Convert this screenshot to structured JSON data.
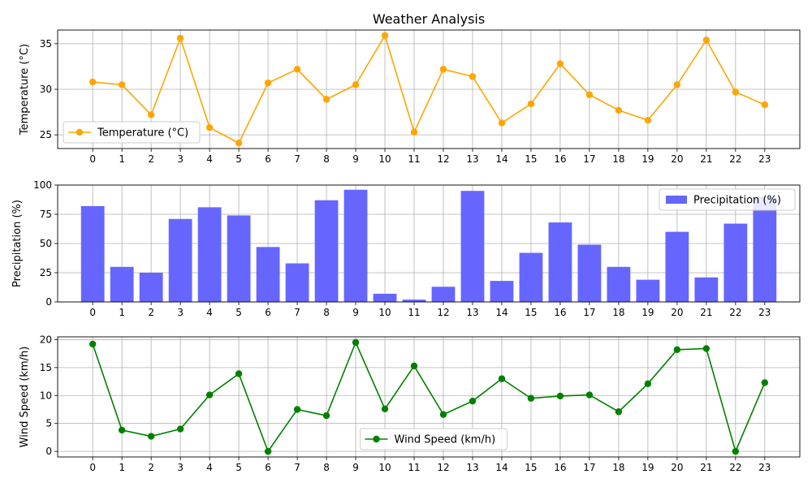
{
  "title": "Weather Analysis",
  "chart_data": [
    {
      "type": "line",
      "name": "temperature-panel",
      "title": "Weather Analysis",
      "x": [
        0,
        1,
        2,
        3,
        4,
        5,
        6,
        7,
        8,
        9,
        10,
        11,
        12,
        13,
        14,
        15,
        16,
        17,
        18,
        19,
        20,
        21,
        22,
        23
      ],
      "x_tick_labels": [
        "0",
        "1",
        "2",
        "3",
        "4",
        "5",
        "6",
        "7",
        "8",
        "9",
        "10",
        "11",
        "12",
        "13",
        "14",
        "15",
        "16",
        "17",
        "18",
        "19",
        "20",
        "21",
        "22",
        "23"
      ],
      "series": [
        {
          "name": "Temperature (°C)",
          "color": "#FFA500",
          "marker": "circle",
          "values": [
            30.8,
            30.5,
            27.2,
            35.6,
            25.8,
            24.1,
            30.7,
            32.2,
            28.9,
            30.5,
            35.9,
            25.3,
            32.2,
            31.4,
            26.3,
            28.4,
            32.8,
            29.4,
            27.7,
            26.6,
            30.5,
            35.4,
            29.7,
            28.3
          ]
        }
      ],
      "xlabel": "",
      "ylabel": "Temperature (°C)",
      "ylim": [
        23.5,
        36.5
      ],
      "y_ticks": [
        25,
        30,
        35
      ],
      "grid": true,
      "legend_position": "lower-left"
    },
    {
      "type": "bar",
      "name": "precipitation-panel",
      "x": [
        0,
        1,
        2,
        3,
        4,
        5,
        6,
        7,
        8,
        9,
        10,
        11,
        12,
        13,
        14,
        15,
        16,
        17,
        18,
        19,
        20,
        21,
        22,
        23
      ],
      "x_tick_labels": [
        "0",
        "1",
        "2",
        "3",
        "4",
        "5",
        "6",
        "7",
        "8",
        "9",
        "10",
        "11",
        "12",
        "13",
        "14",
        "15",
        "16",
        "17",
        "18",
        "19",
        "20",
        "21",
        "22",
        "23"
      ],
      "series": [
        {
          "name": "Precipitation (%)",
          "color": "#6666FF",
          "values": [
            82,
            30,
            25,
            71,
            81,
            74,
            47,
            33,
            87,
            96,
            7,
            2,
            13,
            95,
            18,
            42,
            68,
            49,
            30,
            19,
            60,
            21,
            67,
            90
          ]
        }
      ],
      "xlabel": "",
      "ylabel": "Precipitation (%)",
      "ylim": [
        0,
        100
      ],
      "y_ticks": [
        0,
        25,
        50,
        75,
        100
      ],
      "grid": true,
      "legend_position": "top-right"
    },
    {
      "type": "line",
      "name": "wind-panel",
      "x": [
        0,
        1,
        2,
        3,
        4,
        5,
        6,
        7,
        8,
        9,
        10,
        11,
        12,
        13,
        14,
        15,
        16,
        17,
        18,
        19,
        20,
        21,
        22,
        23
      ],
      "x_tick_labels": [
        "0",
        "1",
        "2",
        "3",
        "4",
        "5",
        "6",
        "7",
        "8",
        "9",
        "10",
        "11",
        "12",
        "13",
        "14",
        "15",
        "16",
        "17",
        "18",
        "19",
        "20",
        "21",
        "22",
        "23"
      ],
      "series": [
        {
          "name": "Wind Speed (km/h)",
          "color": "#008000",
          "marker": "circle",
          "values": [
            19.2,
            3.8,
            2.7,
            4.0,
            10.1,
            13.9,
            0.0,
            7.5,
            6.4,
            19.5,
            7.6,
            15.3,
            6.6,
            9.0,
            13.0,
            9.5,
            9.9,
            10.1,
            7.1,
            12.1,
            18.2,
            18.4,
            0.0,
            12.3
          ]
        }
      ],
      "xlabel": "",
      "ylabel": "Wind Speed (km/h)",
      "ylim": [
        -1,
        20.5
      ],
      "y_ticks": [
        0,
        5,
        10,
        15,
        20
      ],
      "grid": true,
      "legend_position": "lower-center"
    }
  ]
}
